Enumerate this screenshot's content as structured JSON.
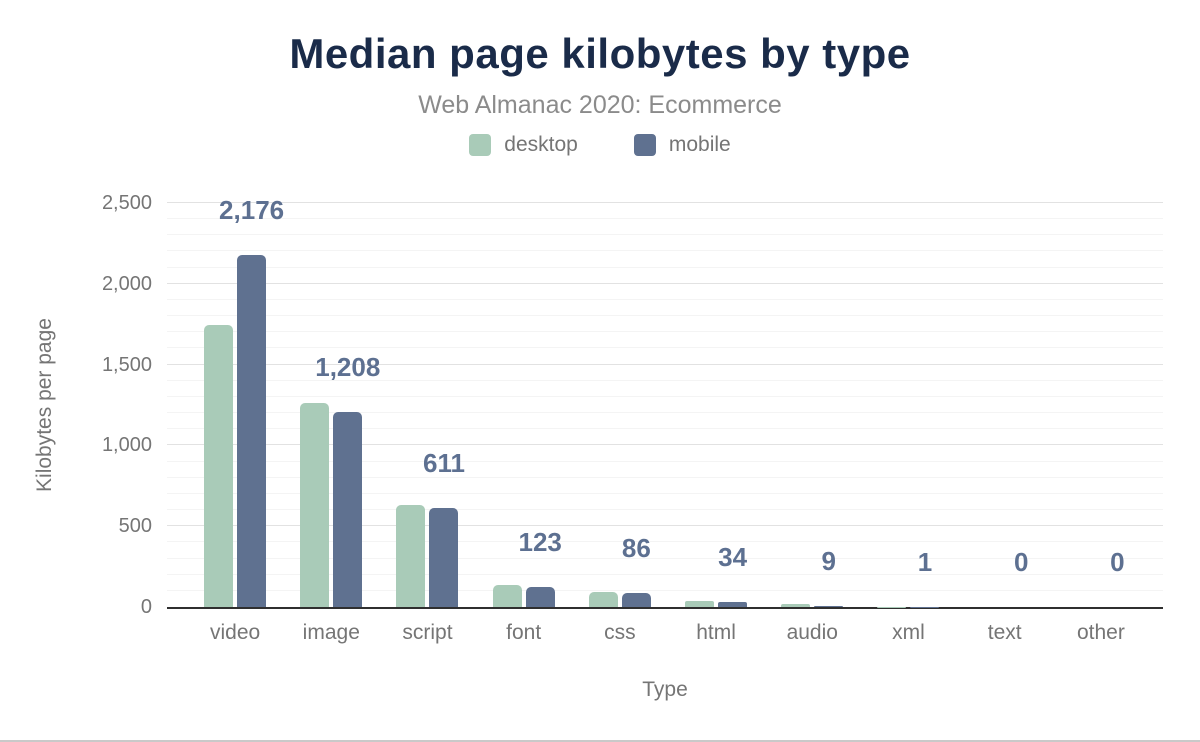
{
  "chart_data": {
    "type": "bar",
    "title": "Median page kilobytes by type",
    "subtitle": "Web Almanac 2020: Ecommerce",
    "xlabel": "Type",
    "ylabel": "Kilobytes per page",
    "categories": [
      "video",
      "image",
      "script",
      "font",
      "css",
      "html",
      "audio",
      "xml",
      "text",
      "other"
    ],
    "series": [
      {
        "name": "desktop",
        "color": "#a9cbb8",
        "values": [
          1746,
          1265,
          630,
          137,
          90,
          36,
          17,
          2,
          0,
          0
        ]
      },
      {
        "name": "mobile",
        "color": "#5f7190",
        "values": [
          2176,
          1208,
          611,
          123,
          86,
          34,
          9,
          1,
          0,
          0
        ]
      }
    ],
    "data_labels": [
      "2,176",
      "1,208",
      "611",
      "123",
      "86",
      "34",
      "9",
      "1",
      "0",
      "0"
    ],
    "data_labels_series": "mobile",
    "ylim": [
      0,
      2500
    ],
    "ytick_step": 500,
    "yticks": [
      "0",
      "500",
      "1,000",
      "1,500",
      "2,000",
      "2,500"
    ],
    "grid": {
      "minor_step": 100,
      "major_step": 500,
      "on": true
    },
    "legend_position": "top"
  },
  "colors": {
    "title": "#1a2b49",
    "subtitle": "#8b8b8b",
    "axis_text": "#757575",
    "desktop": "#a9cbb8",
    "mobile": "#5f7190",
    "data_label": "#5d7091",
    "axis_line": "#2f2f2f",
    "grid_major": "#e2e2e2",
    "grid_minor": "#f4f4f4"
  }
}
